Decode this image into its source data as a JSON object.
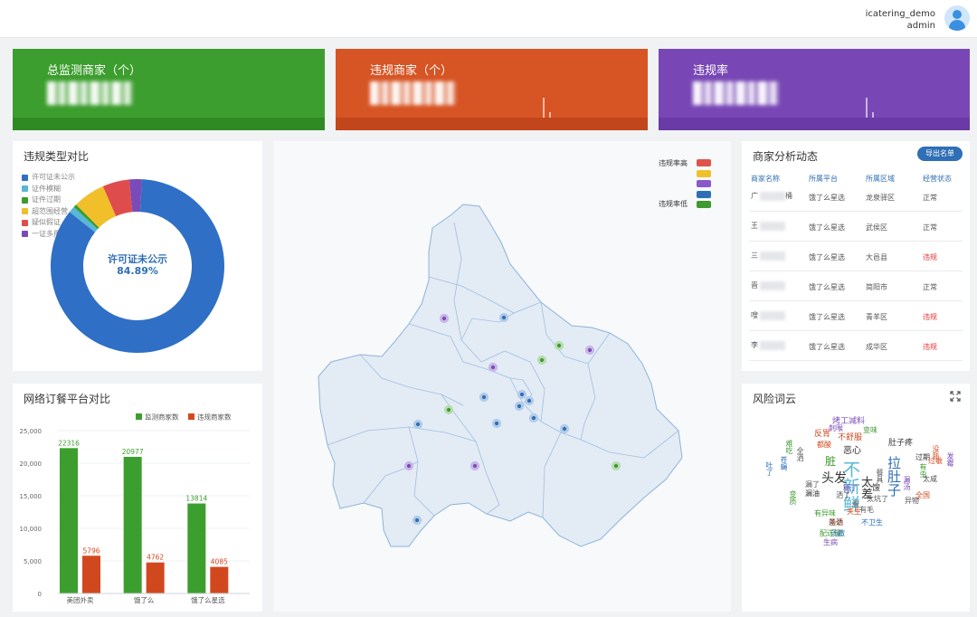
{
  "user": {
    "account": "icatering_demo",
    "role": "admin"
  },
  "stats": [
    {
      "label": "总监测商家（个）"
    },
    {
      "label": "违规商家（个）"
    },
    {
      "label": "违规率"
    }
  ],
  "donut": {
    "title": "违规类型对比",
    "center_title": "许可证未公示",
    "center_value": "84.89%",
    "legend": [
      {
        "name": "许可证未公示",
        "color": "#2f6fc6",
        "value": 84.89
      },
      {
        "name": "证件模糊",
        "color": "#58b7d6",
        "value": 1.2
      },
      {
        "name": "证件过期",
        "color": "#3e9a2e",
        "value": 0.6
      },
      {
        "name": "超范围经营",
        "color": "#f0bf2a",
        "value": 6.0
      },
      {
        "name": "疑似假证",
        "color": "#df4c4c",
        "value": 5.0
      },
      {
        "name": "一证多用",
        "color": "#7a4bb8",
        "value": 2.3
      }
    ]
  },
  "bar": {
    "title": "网络订餐平台对比",
    "chart_data": {
      "type": "bar",
      "categories": [
        "美团外卖",
        "饿了么",
        "饿了么星选"
      ],
      "series": [
        {
          "name": "监测商家数",
          "color": "#3c9e2e",
          "values": [
            22316,
            20977,
            13814
          ]
        },
        {
          "name": "违规商家数",
          "color": "#d2481e",
          "values": [
            5796,
            4762,
            4085
          ]
        }
      ],
      "yticks": [
        "0",
        "5,000",
        "10,000",
        "15,000",
        "20,000",
        "25,000"
      ],
      "ylim": [
        0,
        25000
      ],
      "legend_position": "top-right"
    }
  },
  "map": {
    "legend_high": "违规率高",
    "legend_low": "违规率低",
    "legend_colors": [
      "#e0524c",
      "#f0c12b",
      "#8a58c9",
      "#2f6fb5",
      "#3e9a2e"
    ]
  },
  "table": {
    "title": "商家分析动态",
    "export_label": "导出名单",
    "headers": [
      "商家名称",
      "所属平台",
      "所属区域",
      "经营状态"
    ],
    "rows": [
      {
        "name": "广",
        "name_tail": "桶",
        "platform": "饿了么星选",
        "region": "龙泉驿区",
        "status": "正常",
        "status_color": "#555555"
      },
      {
        "name": "王",
        "name_tail": "",
        "platform": "饿了么星选",
        "region": "武侯区",
        "status": "正常",
        "status_color": "#555555"
      },
      {
        "name": "三",
        "name_tail": "",
        "platform": "饿了么星选",
        "region": "大邑县",
        "status": "违规",
        "status_color": "#e23434"
      },
      {
        "name": "晋",
        "name_tail": "",
        "platform": "饿了么星选",
        "region": "简阳市",
        "status": "正常",
        "status_color": "#555555"
      },
      {
        "name": "嗖",
        "name_tail": "",
        "platform": "饿了么星选",
        "region": "青羊区",
        "status": "违规",
        "status_color": "#e23434"
      },
      {
        "name": "李",
        "name_tail": "",
        "platform": "饿了么星选",
        "region": "成华区",
        "status": "违规",
        "status_color": "#e23434"
      }
    ]
  },
  "wordcloud": {
    "title": "风险词云",
    "words": [
      {
        "t": "不新鲜",
        "c": "#58b7d6"
      },
      {
        "t": "拉肚子",
        "c": "#2f6fb5"
      },
      {
        "t": "头发",
        "c": "#333333"
      },
      {
        "t": "太差",
        "c": "#333333"
      },
      {
        "t": "脏",
        "c": "#3e9a2e"
      },
      {
        "t": "烤工减料",
        "c": "#7a4bb8"
      },
      {
        "t": "反胃",
        "c": "#d2481e"
      },
      {
        "t": "不舒服",
        "c": "#d2481e"
      },
      {
        "t": "恶心",
        "c": "#333333"
      },
      {
        "t": "肚子疼",
        "c": "#333333"
      },
      {
        "t": "过期",
        "c": "#333333"
      },
      {
        "t": "过敏",
        "c": "#d2481e"
      },
      {
        "t": "变味",
        "c": "#3e9a2e"
      },
      {
        "t": "都酸",
        "c": "#d2481e"
      },
      {
        "t": "刺喉",
        "c": "#7a4bb8"
      },
      {
        "t": "苍蝇",
        "c": "#2f6fb5"
      },
      {
        "t": "漏油",
        "c": "#333333"
      },
      {
        "t": "有异味",
        "c": "#3e9a2e"
      },
      {
        "t": "夹生",
        "c": "#d2481e"
      },
      {
        "t": "太坑了",
        "c": "#555555"
      },
      {
        "t": "有毛",
        "c": "#555555"
      },
      {
        "t": "全国",
        "c": "#d2481e"
      },
      {
        "t": "不卫生",
        "c": "#2f6fb5"
      },
      {
        "t": "汤洒",
        "c": "#d2481e"
      },
      {
        "t": "差劲",
        "c": "#555555"
      },
      {
        "t": "配送慢",
        "c": "#3e9a2e"
      },
      {
        "t": "汤撒",
        "c": "#2f6fb5"
      },
      {
        "t": "生病",
        "c": "#7a4bb8"
      },
      {
        "t": "漏了",
        "c": "#555555"
      },
      {
        "t": "洒了",
        "c": "#555555"
      },
      {
        "t": "全洒",
        "c": "#555555"
      },
      {
        "t": "难吃",
        "c": "#3e9a2e"
      },
      {
        "t": "馊",
        "c": "#333333"
      },
      {
        "t": "腥",
        "c": "#555555"
      },
      {
        "t": "没熟",
        "c": "#d2481e"
      },
      {
        "t": "发霉",
        "c": "#7a4bb8"
      },
      {
        "t": "有虫",
        "c": "#3e9a2e"
      },
      {
        "t": "漏汤",
        "c": "#7a4bb8"
      },
      {
        "t": "吐了",
        "c": "#2f6fb5"
      },
      {
        "t": "变质",
        "c": "#3e9a2e"
      },
      {
        "t": "异物",
        "c": "#555555"
      },
      {
        "t": "太咸",
        "c": "#555555"
      },
      {
        "t": "糊了",
        "c": "#7a4bb8"
      },
      {
        "t": "餐具",
        "c": "#555555"
      }
    ]
  }
}
